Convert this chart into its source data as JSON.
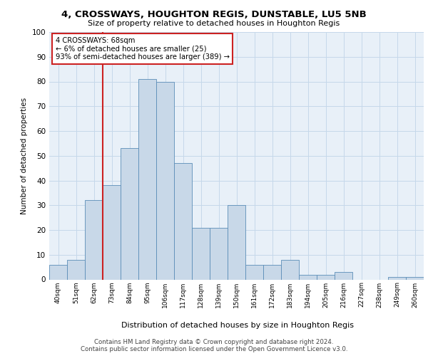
{
  "title1": "4, CROSSWAYS, HOUGHTON REGIS, DUNSTABLE, LU5 5NB",
  "title2": "Size of property relative to detached houses in Houghton Regis",
  "xlabel": "Distribution of detached houses by size in Houghton Regis",
  "ylabel": "Number of detached properties",
  "bin_labels": [
    "40sqm",
    "51sqm",
    "62sqm",
    "73sqm",
    "84sqm",
    "95sqm",
    "106sqm",
    "117sqm",
    "128sqm",
    "139sqm",
    "150sqm",
    "161sqm",
    "172sqm",
    "183sqm",
    "194sqm",
    "205sqm",
    "216sqm",
    "227sqm",
    "238sqm",
    "249sqm",
    "260sqm"
  ],
  "bar_values": [
    6,
    8,
    32,
    38,
    53,
    81,
    80,
    47,
    21,
    21,
    30,
    6,
    6,
    8,
    2,
    2,
    3,
    0,
    0,
    1,
    1
  ],
  "bar_color": "#c8d8e8",
  "bar_edge_color": "#5b8db8",
  "grid_color": "#c5d8ea",
  "bg_color": "#e8f0f8",
  "vline_x": 2.5,
  "vline_color": "#cc2222",
  "annotation_text": "4 CROSSWAYS: 68sqm\n← 6% of detached houses are smaller (25)\n93% of semi-detached houses are larger (389) →",
  "annotation_box_color": "#ffffff",
  "annotation_box_edge": "#cc2222",
  "footnote": "Contains HM Land Registry data © Crown copyright and database right 2024.\nContains public sector information licensed under the Open Government Licence v3.0.",
  "ylim": [
    0,
    100
  ],
  "yticks": [
    0,
    10,
    20,
    30,
    40,
    50,
    60,
    70,
    80,
    90,
    100
  ]
}
